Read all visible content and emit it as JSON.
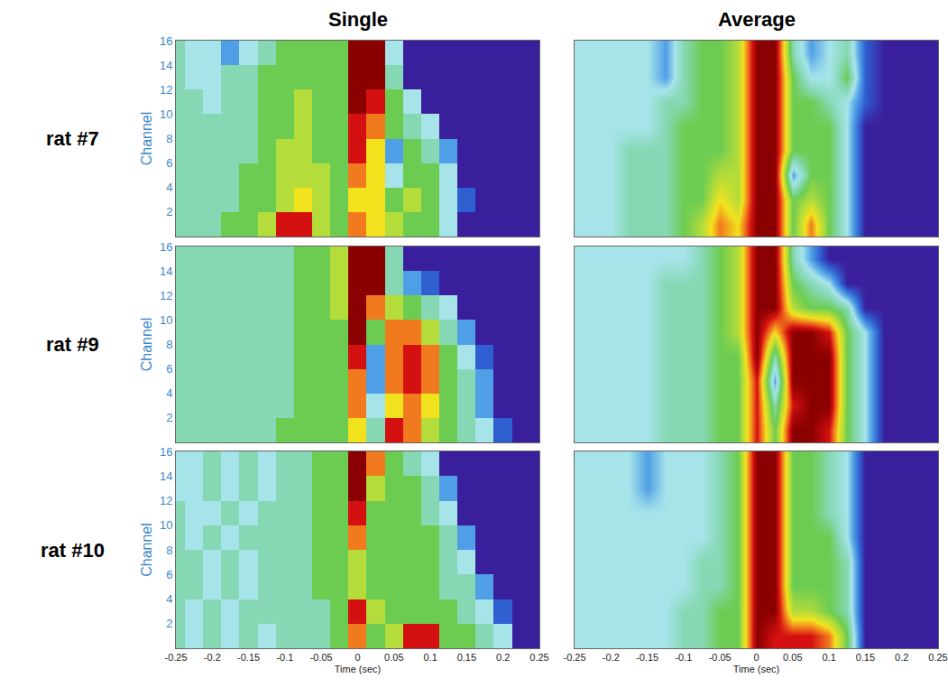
{
  "chart_data": {
    "type": "heatmap",
    "columns": [
      "Single",
      "Average"
    ],
    "rows": [
      "rat #7",
      "rat #9",
      "rat #10"
    ],
    "x_label": "Time (sec)",
    "y_label": "Channel",
    "x": [
      -0.25,
      -0.225,
      -0.2,
      -0.175,
      -0.15,
      -0.125,
      -0.1,
      -0.075,
      -0.05,
      -0.025,
      0,
      0.025,
      0.05,
      0.075,
      0.1,
      0.125,
      0.15,
      0.175,
      0.2,
      0.225,
      0.25
    ],
    "y": [
      1,
      3,
      5,
      7,
      9,
      11,
      13,
      15
    ],
    "xlim": [
      -0.25,
      0.25
    ],
    "xticks": [
      -0.25,
      -0.2,
      -0.15,
      -0.1,
      -0.05,
      0,
      0.05,
      0.1,
      0.15,
      0.2,
      0.25
    ],
    "ylim": [
      0,
      16
    ],
    "yticks": [
      2,
      4,
      6,
      8,
      10,
      12,
      14,
      16
    ],
    "zlim": [
      0,
      10
    ],
    "panels": [
      {
        "row": "rat #7",
        "column": "Single",
        "z": [
          [
            4,
            4,
            4,
            5,
            5,
            6,
            9,
            9,
            6,
            5,
            8,
            7,
            6,
            5,
            5,
            3,
            0,
            0,
            0,
            0,
            0
          ],
          [
            4,
            4,
            4,
            4,
            5,
            5,
            6,
            7,
            6,
            5,
            7,
            7,
            5,
            6,
            5,
            3,
            1,
            0,
            0,
            0,
            0
          ],
          [
            4,
            4,
            4,
            4,
            5,
            5,
            6,
            6,
            6,
            5,
            8,
            7,
            3,
            5,
            5,
            3,
            0,
            0,
            0,
            0,
            0
          ],
          [
            4,
            4,
            4,
            4,
            4,
            5,
            6,
            6,
            5,
            5,
            9,
            7,
            2,
            5,
            4,
            2,
            0,
            0,
            0,
            0,
            0
          ],
          [
            4,
            4,
            4,
            4,
            4,
            5,
            5,
            6,
            5,
            5,
            9,
            8,
            5,
            4,
            3,
            0,
            0,
            0,
            0,
            0,
            0
          ],
          [
            4,
            4,
            3,
            4,
            4,
            5,
            5,
            6,
            5,
            5,
            10,
            9,
            5,
            3,
            0,
            0,
            0,
            0,
            0,
            0,
            0
          ],
          [
            4,
            3,
            3,
            4,
            4,
            5,
            5,
            5,
            5,
            5,
            10,
            10,
            4,
            0,
            0,
            0,
            0,
            0,
            0,
            0,
            0
          ],
          [
            4,
            3,
            3,
            2,
            3,
            4,
            5,
            5,
            5,
            5,
            10,
            10,
            3,
            0,
            0,
            0,
            0,
            0,
            0,
            0,
            0
          ]
        ]
      },
      {
        "row": "rat #7",
        "column": "Average",
        "z": [
          [
            3,
            3,
            3,
            4,
            4,
            4,
            5,
            6,
            8,
            7,
            10,
            10,
            5,
            8,
            5,
            3,
            0,
            0,
            0,
            0,
            0
          ],
          [
            3,
            3,
            3,
            4,
            4,
            4,
            5,
            5,
            7,
            6,
            10,
            10,
            5,
            6,
            5,
            3,
            0,
            0,
            0,
            0,
            0
          ],
          [
            3,
            3,
            3,
            4,
            4,
            4,
            5,
            5,
            6,
            6,
            10,
            10,
            2,
            5,
            5,
            3,
            0,
            0,
            0,
            0,
            0
          ],
          [
            3,
            3,
            3,
            4,
            4,
            4,
            5,
            5,
            5,
            6,
            10,
            10,
            5,
            5,
            5,
            3,
            0,
            0,
            0,
            0,
            0
          ],
          [
            3,
            3,
            3,
            3,
            3,
            4,
            5,
            5,
            5,
            6,
            10,
            10,
            5,
            5,
            5,
            3,
            0,
            0,
            0,
            0,
            0
          ],
          [
            3,
            3,
            3,
            3,
            3,
            4,
            4,
            5,
            5,
            6,
            10,
            10,
            5,
            5,
            4,
            3,
            1,
            0,
            0,
            0,
            0
          ],
          [
            3,
            3,
            3,
            3,
            3,
            2,
            4,
            5,
            5,
            6,
            10,
            10,
            5,
            3,
            3,
            5,
            1,
            0,
            0,
            0,
            0
          ],
          [
            3,
            3,
            3,
            3,
            3,
            2,
            4,
            5,
            5,
            6,
            10,
            10,
            4,
            2,
            3,
            4,
            1,
            0,
            0,
            0,
            0
          ]
        ]
      },
      {
        "row": "rat #9",
        "column": "Single",
        "z": [
          [
            4,
            4,
            4,
            4,
            4,
            4,
            5,
            5,
            5,
            5,
            7,
            4,
            9,
            8,
            6,
            5,
            4,
            3,
            1,
            0,
            0
          ],
          [
            4,
            4,
            4,
            4,
            4,
            4,
            4,
            5,
            5,
            5,
            8,
            3,
            7,
            8,
            7,
            5,
            4,
            2,
            0,
            0,
            0
          ],
          [
            4,
            4,
            4,
            4,
            4,
            4,
            4,
            5,
            5,
            5,
            8,
            2,
            8,
            9,
            8,
            5,
            4,
            2,
            0,
            0,
            0
          ],
          [
            4,
            4,
            4,
            4,
            4,
            4,
            4,
            5,
            5,
            5,
            9,
            2,
            8,
            9,
            8,
            5,
            3,
            1,
            0,
            0,
            0
          ],
          [
            4,
            4,
            4,
            4,
            4,
            4,
            4,
            5,
            5,
            5,
            10,
            5,
            8,
            8,
            6,
            4,
            2,
            0,
            0,
            0,
            0
          ],
          [
            4,
            4,
            4,
            4,
            4,
            4,
            4,
            5,
            5,
            6,
            10,
            8,
            6,
            5,
            4,
            3,
            0,
            0,
            0,
            0,
            0
          ],
          [
            4,
            4,
            4,
            4,
            4,
            4,
            4,
            5,
            5,
            6,
            10,
            10,
            4,
            2,
            1,
            0,
            0,
            0,
            0,
            0,
            0
          ],
          [
            4,
            4,
            4,
            4,
            4,
            4,
            4,
            5,
            5,
            6,
            10,
            10,
            4,
            0,
            0,
            0,
            0,
            0,
            0,
            0,
            0
          ]
        ]
      },
      {
        "row": "rat #9",
        "column": "Average",
        "z": [
          [
            3,
            3,
            3,
            3,
            3,
            4,
            4,
            4,
            5,
            5,
            9,
            5,
            10,
            10,
            9,
            5,
            3,
            0,
            0,
            0,
            0
          ],
          [
            3,
            3,
            3,
            3,
            3,
            4,
            4,
            4,
            5,
            5,
            9,
            4,
            9,
            10,
            10,
            5,
            3,
            0,
            0,
            0,
            0
          ],
          [
            3,
            3,
            3,
            3,
            3,
            4,
            4,
            4,
            5,
            5,
            9,
            2,
            10,
            10,
            10,
            5,
            3,
            0,
            0,
            0,
            0
          ],
          [
            3,
            3,
            3,
            3,
            3,
            4,
            4,
            4,
            5,
            5,
            10,
            4,
            10,
            10,
            10,
            5,
            3,
            0,
            0,
            0,
            0
          ],
          [
            3,
            3,
            3,
            3,
            3,
            4,
            4,
            4,
            5,
            6,
            10,
            7,
            10,
            10,
            9,
            5,
            3,
            0,
            0,
            0,
            0
          ],
          [
            3,
            3,
            3,
            3,
            3,
            4,
            4,
            4,
            5,
            6,
            10,
            10,
            6,
            5,
            5,
            4,
            0,
            0,
            0,
            0,
            0
          ],
          [
            3,
            3,
            3,
            3,
            3,
            4,
            4,
            4,
            5,
            6,
            10,
            10,
            5,
            4,
            3,
            0,
            0,
            0,
            0,
            0,
            0
          ],
          [
            3,
            3,
            3,
            3,
            3,
            3,
            3,
            4,
            5,
            6,
            10,
            10,
            4,
            2,
            0,
            0,
            0,
            0,
            0,
            0,
            0
          ]
        ]
      },
      {
        "row": "rat #10",
        "column": "Single",
        "z": [
          [
            4,
            3,
            4,
            3,
            4,
            3,
            4,
            4,
            4,
            5,
            8,
            5,
            6,
            9,
            9,
            5,
            5,
            4,
            3,
            0,
            0
          ],
          [
            4,
            3,
            4,
            3,
            4,
            4,
            4,
            4,
            4,
            5,
            9,
            6,
            5,
            5,
            5,
            5,
            4,
            3,
            1,
            0,
            0
          ],
          [
            4,
            4,
            3,
            4,
            3,
            4,
            4,
            4,
            5,
            5,
            6,
            5,
            5,
            5,
            5,
            4,
            4,
            2,
            0,
            0,
            0
          ],
          [
            4,
            4,
            3,
            4,
            3,
            4,
            4,
            4,
            5,
            5,
            6,
            5,
            5,
            5,
            5,
            4,
            3,
            0,
            0,
            0,
            0
          ],
          [
            4,
            3,
            4,
            3,
            4,
            4,
            4,
            4,
            5,
            5,
            8,
            5,
            5,
            5,
            5,
            4,
            2,
            0,
            0,
            0,
            0
          ],
          [
            4,
            3,
            3,
            4,
            3,
            4,
            4,
            4,
            5,
            5,
            9,
            5,
            5,
            5,
            4,
            3,
            0,
            0,
            0,
            0,
            0
          ],
          [
            3,
            3,
            4,
            3,
            4,
            3,
            4,
            4,
            5,
            5,
            10,
            6,
            5,
            5,
            4,
            2,
            0,
            0,
            0,
            0,
            0
          ],
          [
            3,
            3,
            4,
            3,
            4,
            3,
            4,
            4,
            5,
            5,
            10,
            8,
            5,
            4,
            3,
            0,
            0,
            0,
            0,
            0,
            0
          ]
        ]
      },
      {
        "row": "rat #10",
        "column": "Average",
        "z": [
          [
            3,
            3,
            3,
            3,
            3,
            3,
            4,
            4,
            5,
            5,
            10,
            9,
            9,
            9,
            8,
            5,
            0,
            0,
            0,
            0,
            0
          ],
          [
            3,
            3,
            3,
            3,
            3,
            3,
            4,
            4,
            5,
            5,
            10,
            10,
            6,
            6,
            5,
            4,
            0,
            0,
            0,
            0,
            0
          ],
          [
            3,
            3,
            3,
            3,
            3,
            3,
            3,
            4,
            4,
            5,
            10,
            10,
            5,
            5,
            5,
            4,
            0,
            0,
            0,
            0,
            0
          ],
          [
            3,
            3,
            3,
            3,
            3,
            3,
            3,
            4,
            4,
            5,
            10,
            10,
            5,
            5,
            5,
            4,
            0,
            0,
            0,
            0,
            0
          ],
          [
            3,
            3,
            3,
            3,
            3,
            3,
            3,
            3,
            4,
            5,
            10,
            10,
            5,
            5,
            5,
            3,
            0,
            0,
            0,
            0,
            0
          ],
          [
            3,
            3,
            3,
            3,
            3,
            3,
            3,
            3,
            4,
            5,
            10,
            10,
            5,
            5,
            4,
            3,
            0,
            0,
            0,
            0,
            0
          ],
          [
            3,
            3,
            3,
            3,
            2,
            3,
            3,
            3,
            4,
            5,
            10,
            10,
            5,
            5,
            4,
            3,
            0,
            0,
            0,
            0,
            0
          ],
          [
            3,
            3,
            3,
            3,
            2,
            3,
            3,
            3,
            4,
            5,
            10,
            10,
            5,
            5,
            4,
            3,
            0,
            0,
            0,
            0,
            0
          ]
        ]
      }
    ]
  }
}
